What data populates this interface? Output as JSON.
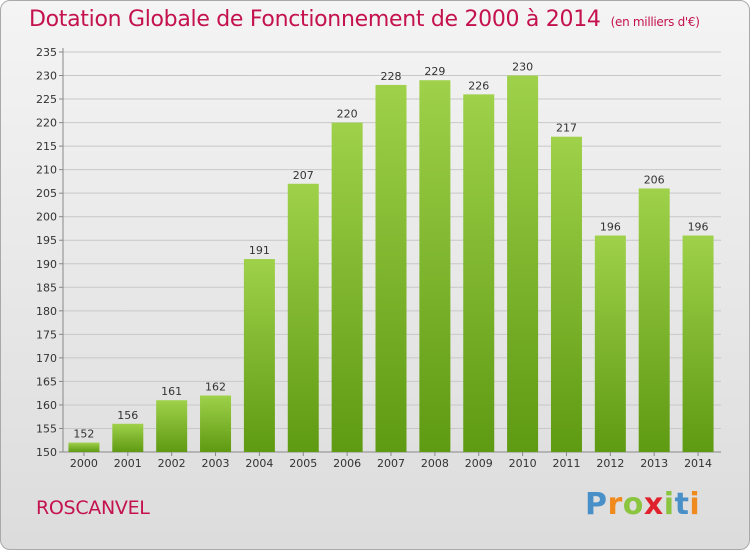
{
  "header": {
    "title": "Dotation Globale de Fonctionnement de 2000 à 2014",
    "unit": "(en milliers d'€)"
  },
  "footer": {
    "commune": "ROSCANVEL",
    "logo_text": "Proxiti",
    "logo_letters": [
      {
        "ch": "P",
        "color": "#4a90c8"
      },
      {
        "ch": "r",
        "color": "#f08a1c"
      },
      {
        "ch": "o",
        "color": "#8bc53f"
      },
      {
        "ch": "x",
        "color": "#e0222c"
      },
      {
        "ch": "i",
        "color": "#8bc53f"
      },
      {
        "ch": "t",
        "color": "#4a90c8"
      },
      {
        "ch": "i",
        "color": "#f08a1c"
      }
    ]
  },
  "colors": {
    "bar_light": "#9fd14a",
    "bar_dark": "#5e9a12",
    "title": "#c4124f",
    "grid": "#c8c8c8"
  },
  "chart_data": {
    "type": "bar",
    "title": "Dotation Globale de Fonctionnement de 2000 à 2014",
    "subtitle": "(en milliers d'€)",
    "categories": [
      "2000",
      "2001",
      "2002",
      "2003",
      "2004",
      "2005",
      "2006",
      "2007",
      "2008",
      "2009",
      "2010",
      "2011",
      "2012",
      "2013",
      "2014"
    ],
    "values": [
      152,
      156,
      161,
      162,
      191,
      207,
      220,
      228,
      229,
      226,
      230,
      217,
      196,
      206,
      196
    ],
    "ylim": [
      150,
      235
    ],
    "yticks": [
      150,
      155,
      160,
      165,
      170,
      175,
      180,
      185,
      190,
      195,
      200,
      205,
      210,
      215,
      220,
      225,
      230,
      235
    ],
    "grid": true
  }
}
